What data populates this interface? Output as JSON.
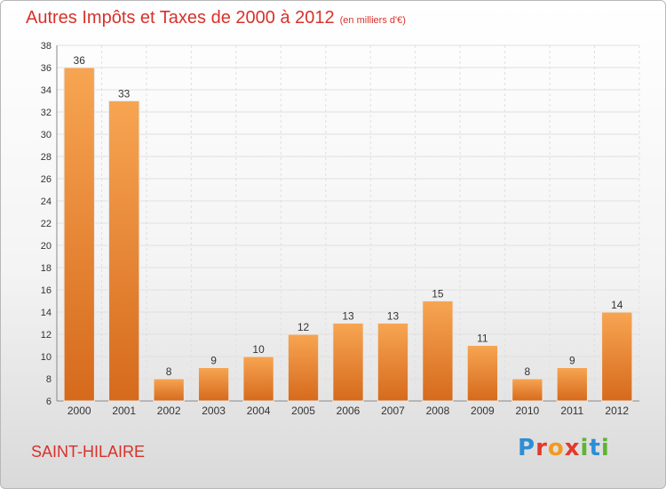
{
  "header": {
    "title": "Autres Impôts et Taxes de 2000 à 2012",
    "subtitle": "(en milliers d'€)"
  },
  "footer": {
    "commune": "SAINT-HILAIRE",
    "logo_text": "Proxiti"
  },
  "colors": {
    "title": "#d7322a",
    "bar_light": "#f7a552",
    "bar_dark": "#d66a1c",
    "grid": "#e0e0e0"
  },
  "chart_data": {
    "type": "bar",
    "title": "Autres Impôts et Taxes de 2000 à 2012",
    "subtitle": "(en milliers d'€)",
    "xlabel": "",
    "ylabel": "",
    "ylim": [
      6,
      38
    ],
    "ytick_step": 2,
    "grid": true,
    "categories": [
      "2000",
      "2001",
      "2002",
      "2003",
      "2004",
      "2005",
      "2006",
      "2007",
      "2008",
      "2009",
      "2010",
      "2011",
      "2012"
    ],
    "values": [
      36,
      33,
      8,
      9,
      10,
      12,
      13,
      13,
      15,
      11,
      8,
      9,
      14
    ],
    "data_labels": true
  }
}
